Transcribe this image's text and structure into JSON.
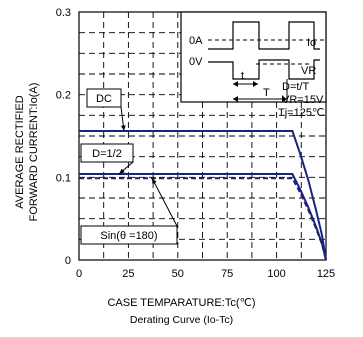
{
  "chart_data": {
    "type": "line",
    "subtitle": "Derating Curve (Io-Tc)",
    "xlabel": "CASE TEMPARATURE:Tc(℃)",
    "ylabel": "AVERAGE RECTIFIED FORWARD CURRENT:Io(A)",
    "xlim": [
      0,
      125
    ],
    "ylim": [
      0,
      0.3
    ],
    "x_ticks": [
      "0",
      "25",
      "50",
      "75",
      "100",
      "125"
    ],
    "y_ticks": [
      "0",
      "0.1",
      "0.2",
      "0.3"
    ],
    "grid": "dashed",
    "series": [
      {
        "name": "DC",
        "style": "solid",
        "x": [
          0,
          108,
          112,
          116,
          120,
          123,
          125
        ],
        "y": [
          0.156,
          0.156,
          0.128,
          0.097,
          0.06,
          0.03,
          0
        ]
      },
      {
        "name": "D=1/2",
        "style": "solid",
        "x": [
          0,
          108,
          112,
          116,
          120,
          123,
          125
        ],
        "y": [
          0.104,
          0.104,
          0.085,
          0.064,
          0.04,
          0.02,
          0
        ]
      },
      {
        "name": "Sin(θ =180)",
        "style": "dashed",
        "x": [
          0,
          108,
          112,
          116,
          120,
          123,
          125
        ],
        "y": [
          0.099,
          0.099,
          0.081,
          0.061,
          0.038,
          0.019,
          0
        ]
      }
    ],
    "callouts": [
      {
        "label": "DC",
        "series": "DC"
      },
      {
        "label": "D=1/2",
        "series": "D=1/2"
      },
      {
        "label": "Sin(θ =180)",
        "series": "Sin(θ =180)"
      }
    ],
    "inset": {
      "labels": [
        "0A",
        "0V",
        "Io",
        "VR",
        "t",
        "T"
      ],
      "params": [
        "D=t/T",
        "VR=15V",
        "Tj=125℃"
      ]
    }
  },
  "colors": {
    "curve": "#1a237e",
    "axis": "#000000",
    "grid": "#000000"
  }
}
